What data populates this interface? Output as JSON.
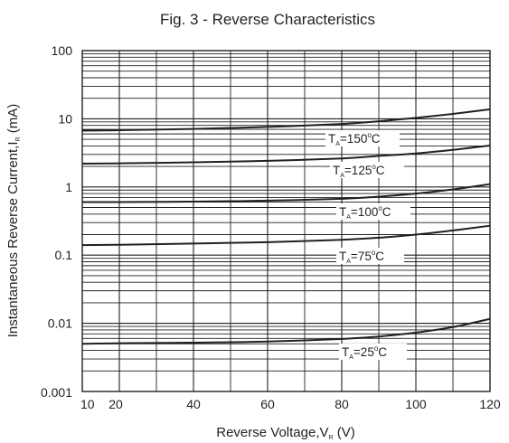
{
  "chart_data": {
    "type": "line",
    "title": "Fig. 3 - Reverse Characteristics",
    "xlabel": {
      "main": "Reverse Voltage,V",
      "sub": "R",
      "unit": " (V)"
    },
    "ylabel": {
      "main": "Instantaneous Reverse Current,I",
      "sub": "R",
      "unit": " (mA)"
    },
    "xlim": [
      10,
      120
    ],
    "ylim": [
      0.001,
      100
    ],
    "yscale": "log",
    "grid": true,
    "xticks": [
      10,
      20,
      40,
      60,
      80,
      100,
      120
    ],
    "xtick_labels": [
      "10",
      "20",
      "40",
      "60",
      "80",
      "100",
      "120"
    ],
    "yticks": [
      0.001,
      0.01,
      0.1,
      1,
      10,
      100
    ],
    "ytick_labels": [
      "0.001",
      "0.01",
      "0.1",
      "1",
      "10",
      "100"
    ],
    "series": [
      {
        "name": "TA=150°C",
        "label": {
          "t": "T",
          "sub": "A",
          "val": "=150",
          "deg": "o",
          "unit": "C"
        },
        "x": [
          10,
          20,
          40,
          60,
          80,
          90,
          100,
          110,
          120
        ],
        "y": [
          6.7,
          6.8,
          7.1,
          7.6,
          8.4,
          9.2,
          10.3,
          11.8,
          13.8
        ]
      },
      {
        "name": "TA=125°C",
        "label": {
          "t": "T",
          "sub": "A",
          "val": "=125",
          "deg": "o",
          "unit": "C"
        },
        "x": [
          10,
          20,
          40,
          60,
          80,
          90,
          100,
          110,
          120
        ],
        "y": [
          2.2,
          2.22,
          2.3,
          2.42,
          2.62,
          2.85,
          3.1,
          3.5,
          4.05
        ]
      },
      {
        "name": "TA=100°C",
        "label": {
          "t": "T",
          "sub": "A",
          "val": "=100",
          "deg": "o",
          "unit": "C"
        },
        "x": [
          10,
          20,
          40,
          60,
          80,
          90,
          100,
          110,
          120
        ],
        "y": [
          0.6,
          0.6,
          0.61,
          0.63,
          0.67,
          0.72,
          0.8,
          0.92,
          1.1
        ]
      },
      {
        "name": "TA=75°C",
        "label": {
          "t": "T",
          "sub": "A",
          "val": "=75",
          "deg": "o",
          "unit": "C"
        },
        "x": [
          10,
          20,
          40,
          60,
          80,
          90,
          100,
          110,
          120
        ],
        "y": [
          0.14,
          0.142,
          0.148,
          0.155,
          0.168,
          0.18,
          0.2,
          0.23,
          0.27
        ]
      },
      {
        "name": "TA=25°C",
        "label": {
          "t": "T",
          "sub": "A",
          "val": "=25",
          "deg": "o",
          "unit": "C"
        },
        "x": [
          10,
          20,
          40,
          60,
          80,
          90,
          100,
          110,
          120
        ],
        "y": [
          0.005,
          0.0051,
          0.0052,
          0.0054,
          0.0059,
          0.0064,
          0.0073,
          0.0088,
          0.0116
        ]
      }
    ]
  }
}
